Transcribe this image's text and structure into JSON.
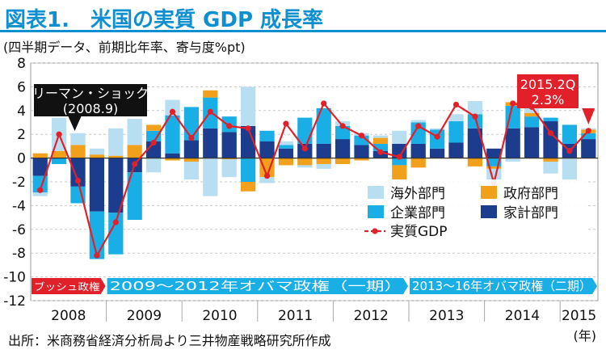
{
  "header": {
    "title": "図表1.　米国の実質 GDP 成長率",
    "subtitle": "(四半期データ、前期比年率、寄与度%pt)"
  },
  "footer": {
    "source": "出所：米商務省経済分析局より三井物産戦略研究所作成",
    "unit": "(年)"
  },
  "colors": {
    "title": "#0e8fcf",
    "overseas": "#b8def2",
    "business": "#1aaee6",
    "government": "#f0a01a",
    "household": "#1c3c8e",
    "real_gdp": "#e2202a",
    "bush_band": "#e2202a",
    "obama_band": "#1aaee6"
  },
  "chart_data": {
    "type": "bar",
    "ylim": [
      -12,
      8
    ],
    "yticks": [
      8,
      6,
      4,
      2,
      0,
      -2,
      -4,
      -6,
      -8,
      -10,
      -12
    ],
    "year_labels": [
      "2008",
      "2009",
      "2010",
      "2011",
      "2012",
      "2013",
      "2014",
      "2015"
    ],
    "x_unit": "(年)",
    "categories": [
      "2008Q1",
      "2008Q2",
      "2008Q3",
      "2008Q4",
      "2009Q1",
      "2009Q2",
      "2009Q3",
      "2009Q4",
      "2010Q1",
      "2010Q2",
      "2010Q3",
      "2010Q4",
      "2011Q1",
      "2011Q2",
      "2011Q3",
      "2011Q4",
      "2012Q1",
      "2012Q2",
      "2012Q3",
      "2012Q4",
      "2013Q1",
      "2013Q2",
      "2013Q3",
      "2013Q4",
      "2014Q1",
      "2014Q2",
      "2014Q3",
      "2014Q4",
      "2015Q1",
      "2015Q2"
    ],
    "series": [
      {
        "name": "海外部門",
        "key": "overseas",
        "values": [
          -0.3,
          2.8,
          1.0,
          0.5,
          2.3,
          2.2,
          -1.2,
          1.3,
          -1.5,
          -3.2,
          -1.5,
          3.3,
          -0.5,
          0.3,
          -0.2,
          -0.4,
          0.4,
          0.2,
          0.2,
          1.1,
          0.2,
          0.1,
          0.6,
          1.1,
          -1.6,
          -0.3,
          0.5,
          -1.0,
          -1.9,
          0.1
        ]
      },
      {
        "name": "企業部門",
        "key": "business",
        "values": [
          -1.4,
          -0.5,
          -1.4,
          -4.0,
          -3.5,
          -4.0,
          0.9,
          3.2,
          2.8,
          2.6,
          1.3,
          -2.0,
          0.9,
          0.3,
          2.2,
          3.0,
          1.1,
          0.8,
          0.6,
          -0.6,
          1.8,
          1.6,
          1.8,
          1.2,
          -0.7,
          1.9,
          0.9,
          0.3,
          1.6,
          0.5
        ]
      },
      {
        "name": "政府部門",
        "key": "government",
        "values": [
          0.4,
          0.6,
          1.1,
          0.3,
          0.2,
          1.1,
          0.5,
          -0.2,
          -0.3,
          0.6,
          -0.1,
          -0.8,
          -1.6,
          -0.6,
          -0.6,
          -0.5,
          -0.5,
          -0.2,
          0.5,
          -1.2,
          -0.8,
          0.0,
          0.0,
          -0.7,
          -0.2,
          0.3,
          0.3,
          -0.3,
          0.0,
          0.3
        ]
      },
      {
        "name": "家計部門",
        "key": "household",
        "values": [
          -1.5,
          0.0,
          -2.4,
          -4.5,
          -4.6,
          -1.2,
          1.4,
          0.4,
          1.5,
          2.5,
          2.2,
          2.7,
          1.4,
          0.8,
          1.2,
          1.2,
          1.6,
          1.1,
          0.6,
          1.2,
          1.2,
          0.8,
          1.3,
          2.5,
          0.8,
          2.5,
          2.6,
          3.1,
          1.2,
          1.6
        ]
      }
    ],
    "line_series": {
      "name": "実質GDP",
      "values": [
        -2.7,
        2.0,
        -1.9,
        -8.2,
        -5.4,
        -0.5,
        1.3,
        3.9,
        1.7,
        3.9,
        2.7,
        2.5,
        -1.5,
        2.9,
        0.8,
        4.6,
        2.7,
        1.9,
        0.5,
        0.1,
        2.7,
        1.8,
        4.5,
        3.5,
        -2.1,
        4.6,
        4.3,
        2.1,
        0.6,
        2.3
      ]
    },
    "annotations": {
      "lehman": [
        "リーマン・ショック",
        "(2008.9)"
      ],
      "latest": [
        "2015.2Q",
        "2.3%"
      ]
    },
    "eras": [
      {
        "label": "ブッシュ政権",
        "start": 0,
        "end": 3,
        "key": "bush"
      },
      {
        "label": "2009～2012年オバマ政権（一期）",
        "start": 4,
        "end": 19,
        "key": "obama1"
      },
      {
        "label": "2013～16年オバマ政権（二期）",
        "start": 20,
        "end": 29,
        "key": "obama2"
      }
    ]
  }
}
